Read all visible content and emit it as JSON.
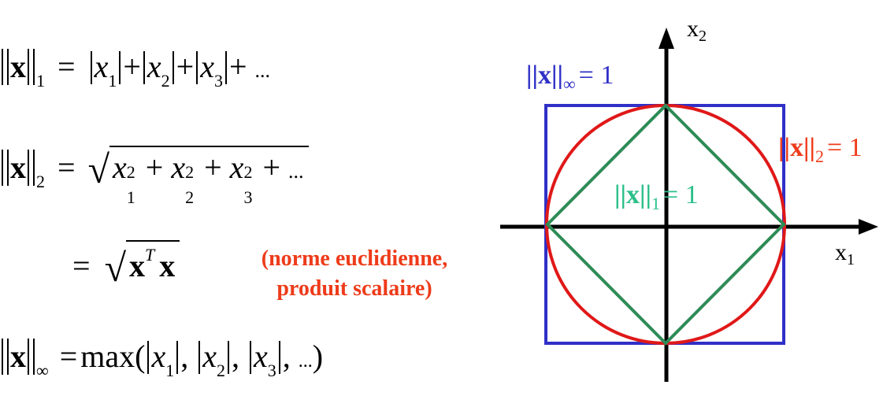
{
  "equations": {
    "l1": {
      "lhs_sub": "1",
      "rhs": [
        "x",
        "1",
        "x",
        "2",
        "x",
        "3"
      ],
      "plus": "+",
      "dots": "..."
    },
    "l2": {
      "lhs_sub": "2",
      "sq": "2",
      "dots": "...",
      "plus": "+"
    },
    "euclid": {
      "sup": "T"
    },
    "linf": {
      "lhs_sub": "∞",
      "fn": "max(",
      "close": ")",
      "dots": "...",
      "comma": ","
    }
  },
  "note": {
    "line1": "(norme euclidienne,",
    "line2": "produit scalaire)"
  },
  "diagram": {
    "axis_x": {
      "letter": "x",
      "sub": "1"
    },
    "axis_y": {
      "letter": "x",
      "sub": "2"
    },
    "labels": [
      {
        "id": "inf",
        "norm": "||x||",
        "sub": "∞",
        "value": "= 1",
        "color": "#3030c8"
      },
      {
        "id": "two",
        "norm": "||x||",
        "sub": "2",
        "value": "= 1",
        "color": "#ee3b1a"
      },
      {
        "id": "one",
        "norm": "||x||",
        "sub": "1",
        "value": "= 1",
        "color": "#2bbf8a"
      }
    ],
    "colors": {
      "square": "#3030c8",
      "circle": "#e01818",
      "diamond": "#2e8b57",
      "axes": "#000000"
    }
  }
}
